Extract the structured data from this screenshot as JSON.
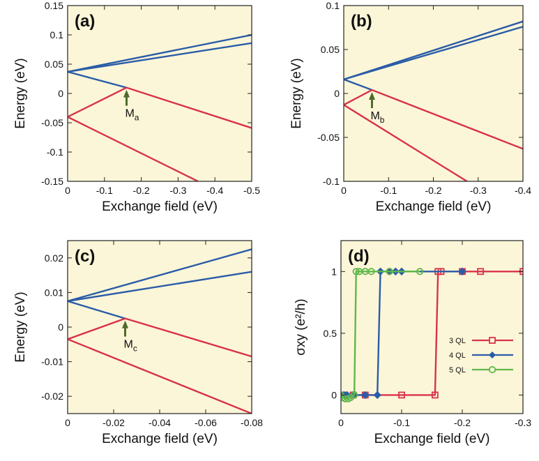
{
  "colors": {
    "background": "#fcf6d8",
    "blue": "#2a5ca8",
    "red": "#d8324a",
    "green": "#5fb84a",
    "arrow": "#4d6b2a"
  },
  "chart_data": [
    {
      "type": "line",
      "panel_label": "(a)",
      "xlabel": "Exchange field (eV)",
      "ylabel": "Energy (eV)",
      "xlim": [
        0,
        -0.5
      ],
      "ylim": [
        -0.15,
        0.15
      ],
      "xticks": [
        0,
        -0.1,
        -0.2,
        -0.3,
        -0.4,
        -0.5
      ],
      "xtick_labels": [
        "0",
        "-0.1",
        "-0.2",
        "-0.3",
        "-0.4",
        "-0.5"
      ],
      "yticks": [
        -0.15,
        -0.1,
        -0.05,
        0,
        0.05,
        0.1,
        0.15
      ],
      "ytick_labels": [
        "-0.15",
        "-0.1",
        "-0.05",
        "0",
        "0.05",
        "0.1",
        "0.15"
      ],
      "series": [
        {
          "color": "blue",
          "points": [
            [
              0,
              0.037
            ],
            [
              -0.5,
              0.1
            ]
          ]
        },
        {
          "color": "blue",
          "points": [
            [
              0,
              0.037
            ],
            [
              -0.5,
              0.086
            ]
          ]
        },
        {
          "color": "blue",
          "points": [
            [
              0,
              0.037
            ],
            [
              -0.16,
              0.01
            ]
          ]
        },
        {
          "color": "red",
          "points": [
            [
              0,
              -0.04
            ],
            [
              -0.16,
              0.01
            ]
          ]
        },
        {
          "color": "red",
          "points": [
            [
              -0.16,
              0.01
            ],
            [
              -0.5,
              -0.059
            ]
          ]
        },
        {
          "color": "red",
          "points": [
            [
              0,
              -0.04
            ],
            [
              -0.354,
              -0.15
            ]
          ]
        }
      ],
      "annotation": {
        "text": "M",
        "sub": "a",
        "x": -0.16,
        "y": 0.01
      }
    },
    {
      "type": "line",
      "panel_label": "(b)",
      "xlabel": "Exchange field (eV)",
      "ylabel": "Energy (eV)",
      "xlim": [
        0,
        -0.4
      ],
      "ylim": [
        -0.1,
        0.1
      ],
      "xticks": [
        0,
        -0.1,
        -0.2,
        -0.3,
        -0.4
      ],
      "xtick_labels": [
        "0",
        "-0.1",
        "-0.2",
        "-0.3",
        "-0.4"
      ],
      "yticks": [
        -0.1,
        -0.05,
        0,
        0.05,
        0.1
      ],
      "ytick_labels": [
        "-0.1",
        "-0.05",
        "0",
        "0.05",
        "0.1"
      ],
      "series": [
        {
          "color": "blue",
          "points": [
            [
              0,
              0.016
            ],
            [
              -0.4,
              0.082
            ]
          ]
        },
        {
          "color": "blue",
          "points": [
            [
              0,
              0.016
            ],
            [
              -0.4,
              0.076
            ]
          ]
        },
        {
          "color": "blue",
          "points": [
            [
              0,
              0.016
            ],
            [
              -0.063,
              0.004
            ]
          ]
        },
        {
          "color": "red",
          "points": [
            [
              0,
              -0.013
            ],
            [
              -0.063,
              0.004
            ]
          ]
        },
        {
          "color": "red",
          "points": [
            [
              -0.063,
              0.004
            ],
            [
              -0.4,
              -0.063
            ]
          ]
        },
        {
          "color": "red",
          "points": [
            [
              0,
              -0.013
            ],
            [
              -0.275,
              -0.1
            ]
          ]
        }
      ],
      "annotation": {
        "text": "M",
        "sub": "b",
        "x": -0.063,
        "y": 0.004
      }
    },
    {
      "type": "line",
      "panel_label": "(c)",
      "xlabel": "Exchange field (eV)",
      "ylabel": "Energy (eV)",
      "xlim": [
        0,
        -0.08
      ],
      "ylim": [
        -0.025,
        0.025
      ],
      "xticks": [
        0,
        -0.02,
        -0.04,
        -0.06,
        -0.08
      ],
      "xtick_labels": [
        "0",
        "-0.02",
        "-0.04",
        "-0.06",
        "-0.08"
      ],
      "yticks": [
        -0.02,
        -0.01,
        0,
        0.01,
        0.02
      ],
      "ytick_labels": [
        "-0.02",
        "-0.01",
        "0",
        "0.01",
        "0.02"
      ],
      "series": [
        {
          "color": "blue",
          "points": [
            [
              0,
              0.0075
            ],
            [
              -0.08,
              0.0225
            ]
          ]
        },
        {
          "color": "blue",
          "points": [
            [
              0,
              0.0075
            ],
            [
              -0.08,
              0.016
            ]
          ]
        },
        {
          "color": "blue",
          "points": [
            [
              0,
              0.0075
            ],
            [
              -0.025,
              0.0025
            ]
          ]
        },
        {
          "color": "red",
          "points": [
            [
              0,
              -0.0035
            ],
            [
              -0.025,
              0.0025
            ]
          ]
        },
        {
          "color": "red",
          "points": [
            [
              -0.025,
              0.0025
            ],
            [
              -0.08,
              -0.0085
            ]
          ]
        },
        {
          "color": "red",
          "points": [
            [
              0,
              -0.0035
            ],
            [
              -0.08,
              -0.025
            ]
          ]
        }
      ],
      "annotation": {
        "text": "M",
        "sub": "c",
        "x": -0.025,
        "y": 0.0025
      }
    },
    {
      "type": "line",
      "panel_label": "(d)",
      "xlabel": "Exchange field (eV)",
      "ylabel": "σxy (e²/h)",
      "xlim": [
        0,
        -0.3
      ],
      "ylim": [
        -0.15,
        1.25
      ],
      "xticks": [
        0,
        -0.1,
        -0.2,
        -0.3
      ],
      "xtick_labels": [
        "0",
        "-0.1",
        "-0.2",
        "-0.3"
      ],
      "yticks": [
        0,
        0.5,
        1
      ],
      "ytick_labels": [
        "0",
        "0.5",
        "1"
      ],
      "series": [
        {
          "name": "3 QL",
          "color": "red",
          "marker": "square",
          "x": [
            0,
            -0.005,
            -0.02,
            -0.04,
            -0.1,
            -0.155,
            -0.16,
            -0.165,
            -0.2,
            -0.23,
            -0.3
          ],
          "y": [
            0,
            0,
            0,
            0,
            0,
            0,
            1,
            1,
            1,
            1,
            1
          ]
        },
        {
          "name": "4 QL",
          "color": "blue",
          "marker": "diamond",
          "x": [
            0,
            -0.005,
            -0.01,
            -0.02,
            -0.04,
            -0.06,
            -0.065,
            -0.08,
            -0.09,
            -0.1,
            -0.2
          ],
          "y": [
            0,
            0,
            0,
            0,
            0,
            0,
            1,
            1,
            1,
            1,
            1
          ]
        },
        {
          "name": "5 QL",
          "color": "green",
          "marker": "circle",
          "x": [
            0,
            -0.003,
            -0.007,
            -0.012,
            -0.016,
            -0.022,
            -0.025,
            -0.03,
            -0.04,
            -0.05,
            -0.08,
            -0.13
          ],
          "y": [
            0,
            -0.02,
            -0.03,
            -0.03,
            -0.02,
            0,
            1,
            1,
            1,
            1,
            1,
            1
          ]
        }
      ]
    }
  ]
}
